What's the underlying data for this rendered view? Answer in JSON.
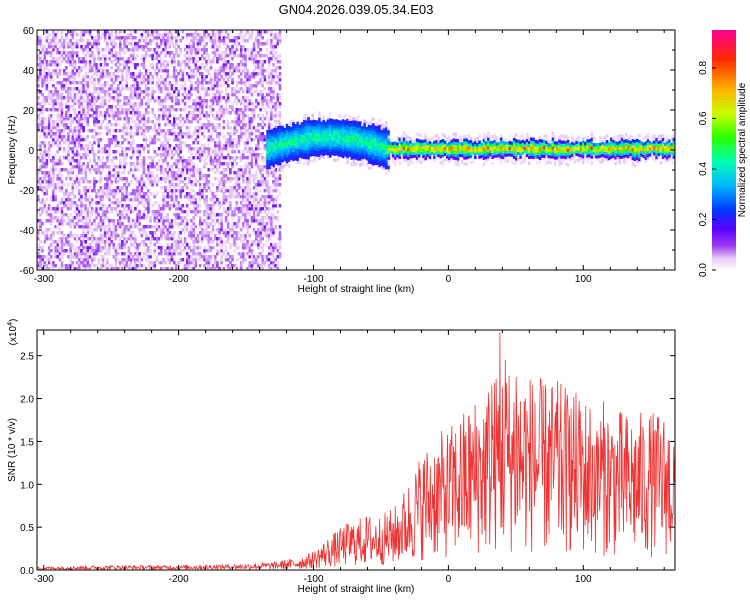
{
  "figure_title": "GN04.2026.039.05.34.E03",
  "chart_data": [
    {
      "type": "heatmap",
      "xlabel": "Height of straight line (km)",
      "ylabel": "Frequency (Hz)",
      "xlim": [
        -305,
        168
      ],
      "ylim": [
        -60,
        60
      ],
      "xticks": [
        -300,
        -200,
        -100,
        0,
        100
      ],
      "yticks": [
        -60,
        -40,
        -20,
        0,
        20,
        40,
        60
      ],
      "xtick_labels": [
        "-300",
        "-200",
        "-100",
        "0",
        "100"
      ],
      "ytick_labels": [
        "-60",
        "-40",
        "-20",
        "0",
        "20",
        "40",
        "60"
      ],
      "colorbar": {
        "label": "Normalized spectral amplitude",
        "range": [
          0,
          0.95
        ],
        "ticks": [
          0.0,
          0.2,
          0.4,
          0.6,
          0.8
        ],
        "tick_labels": [
          "0.0",
          "0.2",
          "0.4",
          "0.6",
          "0.8"
        ],
        "colormap": [
          "#ffffff",
          "#e6c8f5",
          "#9d3cf0",
          "#5a00ff",
          "#0038ff",
          "#00b4ff",
          "#00ffb4",
          "#28ff00",
          "#c8ff00",
          "#ffb400",
          "#ff2800",
          "#ff0096"
        ]
      },
      "regions": [
        {
          "name": "noise",
          "x_range": [
            -305,
            -125
          ],
          "freq_range": [
            -60,
            60
          ],
          "amplitude_range": [
            0.05,
            0.25
          ]
        },
        {
          "name": "onset",
          "x_range": [
            -135,
            -45
          ],
          "center_freq": [
            0,
            6
          ],
          "half_width": [
            8,
            10
          ],
          "amplitude_range": [
            0.3,
            0.6
          ]
        },
        {
          "name": "steady_tone",
          "x_range": [
            -45,
            168
          ],
          "center_freq": 0,
          "half_width": [
            3,
            5
          ],
          "amplitude_range": [
            0.5,
            0.9
          ]
        }
      ]
    },
    {
      "type": "line",
      "xlabel": "Height of straight line (km)",
      "ylabel": "SNR (10 * v/v)",
      "y_multiplier": "(x10",
      "y_multiplier_exp": "4",
      "y_multiplier_close": ")",
      "xlim": [
        -305,
        168
      ],
      "ylim": [
        0,
        2.8
      ],
      "xticks": [
        -300,
        -200,
        -100,
        0,
        100
      ],
      "yticks": [
        0.0,
        0.5,
        1.0,
        1.5,
        2.0,
        2.5
      ],
      "xtick_labels": [
        "-300",
        "-200",
        "-100",
        "0",
        "100"
      ],
      "ytick_labels": [
        "0.0",
        "0.5",
        "1.0",
        "1.5",
        "2.0",
        "2.5"
      ],
      "series": [
        {
          "name": "SNR",
          "color": "#ee3333",
          "envelope_x": [
            -305,
            -250,
            -200,
            -150,
            -130,
            -110,
            -100,
            -90,
            -75,
            -60,
            -50,
            -40,
            -30,
            -20,
            -10,
            0,
            10,
            20,
            30,
            40,
            50,
            60,
            70,
            80,
            90,
            100,
            110,
            120,
            130,
            140,
            150,
            160,
            168
          ],
          "envelope_y": [
            0.02,
            0.03,
            0.03,
            0.04,
            0.05,
            0.08,
            0.12,
            0.2,
            0.3,
            0.35,
            0.35,
            0.4,
            0.55,
            0.75,
            0.85,
            0.9,
            1.0,
            1.1,
            1.2,
            1.3,
            1.3,
            1.25,
            1.2,
            1.2,
            1.15,
            1.1,
            1.1,
            1.05,
            1.0,
            1.0,
            1.0,
            1.0,
            0.95
          ],
          "noise_fraction": 0.85,
          "peaks": [
            {
              "x": 38,
              "y": 2.77
            },
            {
              "x": 32,
              "y": 2.15
            },
            {
              "x": 42,
              "y": 2.45
            },
            {
              "x": 50,
              "y": 2.25
            },
            {
              "x": 57,
              "y": 2.0
            },
            {
              "x": 64,
              "y": 1.95
            },
            {
              "x": 72,
              "y": 2.1
            },
            {
              "x": 80,
              "y": 1.95
            },
            {
              "x": 90,
              "y": 1.8
            },
            {
              "x": 98,
              "y": 1.85
            },
            {
              "x": 110,
              "y": 1.5
            },
            {
              "x": 120,
              "y": 1.4
            },
            {
              "x": 150,
              "y": 1.0
            }
          ]
        }
      ]
    }
  ]
}
